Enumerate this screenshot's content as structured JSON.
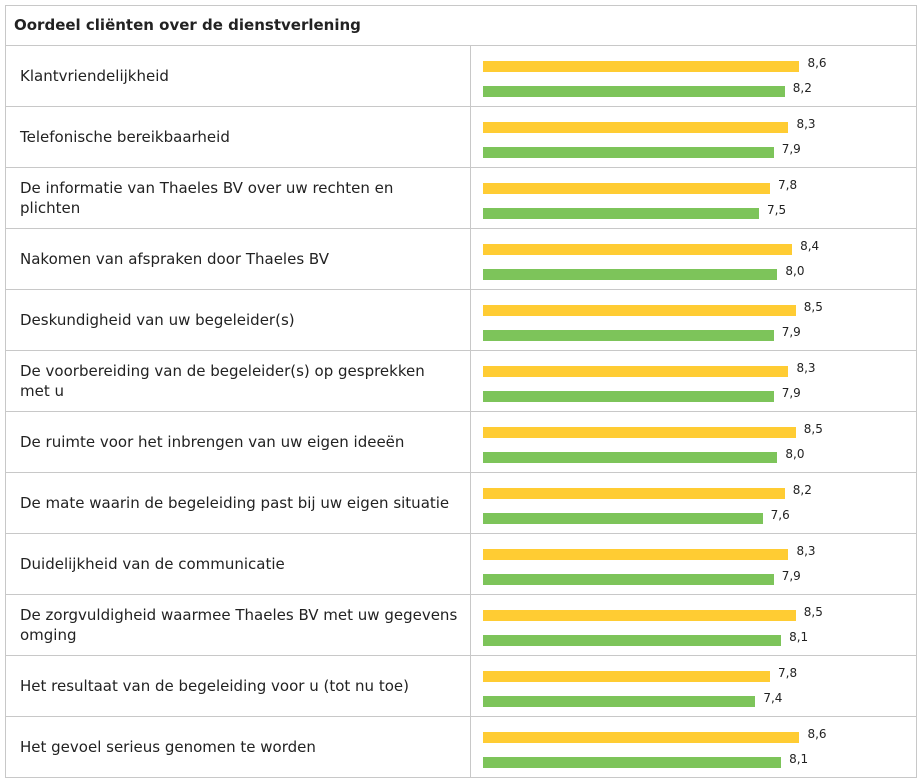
{
  "table": {
    "title": "Oordeel cliënten over de dienstverlening",
    "colors": [
      "#ffcc33",
      "#7dc45a"
    ],
    "rows": [
      {
        "label": "Klantvriendelijkheid",
        "values": [
          8.6,
          8.2
        ],
        "value_labels": [
          "8,6",
          "8,2"
        ]
      },
      {
        "label": "Telefonische bereikbaarheid",
        "values": [
          8.3,
          7.9
        ],
        "value_labels": [
          "8,3",
          "7,9"
        ]
      },
      {
        "label": "De informatie van Thaeles BV over uw rechten en plichten",
        "values": [
          7.8,
          7.5
        ],
        "value_labels": [
          "7,8",
          "7,5"
        ]
      },
      {
        "label": "Nakomen van afspraken door Thaeles BV",
        "values": [
          8.4,
          8.0
        ],
        "value_labels": [
          "8,4",
          "8,0"
        ]
      },
      {
        "label": "Deskundigheid van uw begeleider(s)",
        "values": [
          8.5,
          7.9
        ],
        "value_labels": [
          "8,5",
          "7,9"
        ]
      },
      {
        "label": "De voorbereiding van de begeleider(s) op gesprekken met u",
        "values": [
          8.3,
          7.9
        ],
        "value_labels": [
          "8,3",
          "7,9"
        ]
      },
      {
        "label": "De ruimte voor het inbrengen van uw eigen ideeën",
        "values": [
          8.5,
          8.0
        ],
        "value_labels": [
          "8,5",
          "8,0"
        ]
      },
      {
        "label": "De mate waarin de begeleiding past bij uw eigen situatie",
        "values": [
          8.2,
          7.6
        ],
        "value_labels": [
          "8,2",
          "7,6"
        ]
      },
      {
        "label": "Duidelijkheid van de communicatie",
        "values": [
          8.3,
          7.9
        ],
        "value_labels": [
          "8,3",
          "7,9"
        ]
      },
      {
        "label": "De zorgvuldigheid waarmee Thaeles BV met uw gegevens omging",
        "values": [
          8.5,
          8.1
        ],
        "value_labels": [
          "8,5",
          "8,1"
        ]
      },
      {
        "label": "Het resultaat van de begeleiding voor u (tot nu toe)",
        "values": [
          7.8,
          7.4
        ],
        "value_labels": [
          "7,8",
          "7,4"
        ]
      },
      {
        "label": "Het gevoel serieus genomen te worden",
        "values": [
          8.6,
          8.1
        ],
        "value_labels": [
          "8,6",
          "8,1"
        ]
      }
    ]
  }
}
